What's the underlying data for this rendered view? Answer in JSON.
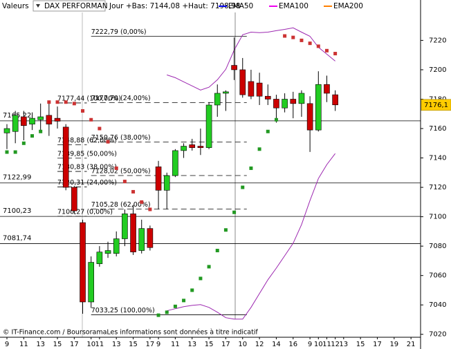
{
  "header": {
    "label": "Valeurs",
    "instrument": "DAX PERFORMAN",
    "range_text": "Jour +Bas: 7144,08 +Haut: 7198,98"
  },
  "chart_data": {
    "type": "candlestick",
    "categories": [
      "9",
      null,
      "11",
      null,
      "13",
      null,
      "15",
      null,
      "17",
      null,
      "10",
      "11",
      null,
      "13",
      null,
      "15",
      null,
      "17",
      "9",
      null,
      "11",
      null,
      "13",
      null,
      "15",
      null,
      "17",
      null,
      "10",
      null,
      "12",
      null,
      "14",
      null,
      "16",
      null,
      "9",
      "10",
      "11",
      "12",
      "13",
      null,
      "15",
      null,
      "17",
      null,
      "19",
      null,
      "21"
    ],
    "open": [
      7157,
      7158,
      7168,
      7163,
      7166,
      7169,
      7167,
      7161,
      7120,
      7096,
      7042,
      7068,
      7075,
      7075,
      7085,
      7102,
      7077,
      7092,
      7134,
      7118,
      7128,
      7145,
      7149,
      7148,
      7147,
      7176,
      7184,
      7203,
      7200,
      7192,
      7191,
      7182,
      7180,
      7174,
      7180,
      7177,
      7177,
      7159,
      7190,
      7183,
      null,
      null,
      null,
      null,
      null,
      null,
      null,
      null,
      null
    ],
    "high": [
      7163,
      7172,
      7172,
      7171,
      7177,
      7177,
      7175,
      7163,
      7121,
      7098,
      7073,
      7080,
      7083,
      7090,
      7105,
      7108,
      7098,
      7094,
      7138,
      7130,
      7146,
      7150,
      7153,
      7160,
      7178,
      7190,
      7186,
      7222,
      7208,
      7200,
      7198,
      7190,
      7183,
      7184,
      7185,
      7186,
      7182,
      7198.98,
      7196,
      7186,
      null,
      null,
      null,
      null,
      null,
      null,
      null,
      null,
      null
    ],
    "low": [
      7146,
      7150,
      7152,
      7159,
      7158,
      7155,
      7160,
      7118,
      7102,
      7034,
      7038,
      7066,
      7072,
      7073,
      7080,
      7074,
      7075,
      7077,
      7105,
      7105,
      7127,
      7140,
      7145,
      7142,
      7146,
      7168,
      7172,
      7193,
      7181,
      7180,
      7176,
      7176,
      7164,
      7171,
      7167,
      7168,
      7144.08,
      7158,
      7178,
      7172,
      null,
      null,
      null,
      null,
      null,
      null,
      null,
      null,
      null
    ],
    "close": [
      7160,
      7169,
      7162,
      7167,
      7168,
      7163,
      7165,
      7120,
      7104,
      7042,
      7069,
      7076,
      7077,
      7085,
      7102,
      7076,
      7092,
      7079,
      7118,
      7128,
      7145,
      7148,
      7147,
      7147,
      7176,
      7184,
      7185,
      7200,
      7183,
      7182,
      7182,
      7180,
      7174,
      7180,
      7177,
      7184,
      7159,
      7190,
      7184,
      7176.1,
      null,
      null,
      null,
      null,
      null,
      null,
      null,
      null,
      null
    ],
    "up_color": "#22cc22",
    "down_color": "#cc0000",
    "sar": {
      "values": [
        7144,
        7144,
        7150,
        7155,
        7158,
        7178,
        7178,
        7178,
        7177,
        7172,
        7166,
        7160,
        7151,
        7133,
        7124,
        7117,
        7110,
        7105,
        7033,
        7035,
        7039,
        7043,
        7050,
        7058,
        7066,
        7077,
        7091,
        7103,
        7120,
        7133,
        7146,
        7158,
        7166,
        7223,
        7222,
        7220,
        7218,
        7216,
        7213,
        7211,
        null,
        null,
        null,
        null,
        null,
        null,
        null,
        null,
        null
      ],
      "above_color": "#cc3333",
      "below_color": "#229922"
    },
    "bands": {
      "color": "#9c27b0",
      "upper": [
        null,
        null,
        null,
        null,
        null,
        null,
        null,
        null,
        null,
        null,
        null,
        null,
        null,
        null,
        null,
        null,
        null,
        null,
        null,
        7196.5,
        7194.6,
        7191.8,
        7189,
        7186.2,
        7188.1,
        7193.2,
        7200.3,
        7213.4,
        7223.8,
        7225.6,
        7225.2,
        7225.6,
        7226.6,
        7227.5,
        7228.5,
        7225.6,
        7222.8,
        7215.3,
        7210.6,
        7205.9,
        null,
        null,
        null,
        null,
        null,
        null,
        null,
        null,
        null
      ],
      "lower": [
        null,
        null,
        null,
        null,
        null,
        null,
        null,
        null,
        null,
        null,
        null,
        null,
        null,
        null,
        null,
        null,
        null,
        null,
        null,
        7036,
        7037.4,
        7038.8,
        7039.7,
        7040.2,
        7038.3,
        7035,
        7031.3,
        7030.3,
        7030.3,
        7038.3,
        7047.7,
        7057.1,
        7065,
        7073.5,
        7082,
        7094.6,
        7111,
        7126,
        7135.5,
        7143,
        null,
        null,
        null,
        null,
        null,
        null,
        null,
        null,
        null
      ]
    },
    "legend": [
      {
        "name": "EMA50",
        "color": "#0000ee"
      },
      {
        "name": "EMA100",
        "color": "#ee00ee"
      },
      {
        "name": "EMA200",
        "color": "#ff7f00"
      }
    ],
    "levels": [
      {
        "value": 7165.22,
        "label": "7165,22"
      },
      {
        "value": 7122.99,
        "label": "7122,99"
      },
      {
        "value": 7100.23,
        "label": "7100,23"
      },
      {
        "value": 7081.74,
        "label": "7081,74"
      }
    ],
    "fibonacci": [
      {
        "lines": [
          {
            "value": 7222.79,
            "label": "7222,79 (0,00%)"
          },
          {
            "value": 7177.7,
            "label": "7177,70 (24,00%)"
          },
          {
            "value": 7150.76,
            "label": "7150,76 (38,00%)"
          },
          {
            "value": 7128.02,
            "label": "7128,02 (50,00%)"
          },
          {
            "value": 7105.28,
            "label": "7105,28 (62,00%)"
          },
          {
            "value": 7033.25,
            "label": "7033,25 (100,00%)"
          }
        ]
      },
      {
        "lines": [
          {
            "value": 7177.44,
            "label": "7177,44 (100,00%)"
          },
          {
            "value": 7148.88,
            "label": "7148,88 (62,00%)"
          },
          {
            "value": 7139.85,
            "label": "7139,85 (50,00%)"
          },
          {
            "value": 7130.83,
            "label": "7130,83 (38,00%)"
          },
          {
            "value": 7120.31,
            "label": "7120,31 (24,00%)"
          },
          {
            "value": 7100.27,
            "label": "7100,27 (0,00%)"
          }
        ]
      }
    ],
    "last_price": {
      "value": 7176.1,
      "label": "7176,1"
    },
    "last_price_color": "#ffcc00",
    "ylim": [
      7018,
      7239
    ],
    "yticks": [
      7020,
      7040,
      7060,
      7080,
      7100,
      7120,
      7140,
      7160,
      7180,
      7200,
      7220
    ]
  },
  "footer": "© IT-Finance.com / BoursoramaLes informations sont données à titre indicatif"
}
